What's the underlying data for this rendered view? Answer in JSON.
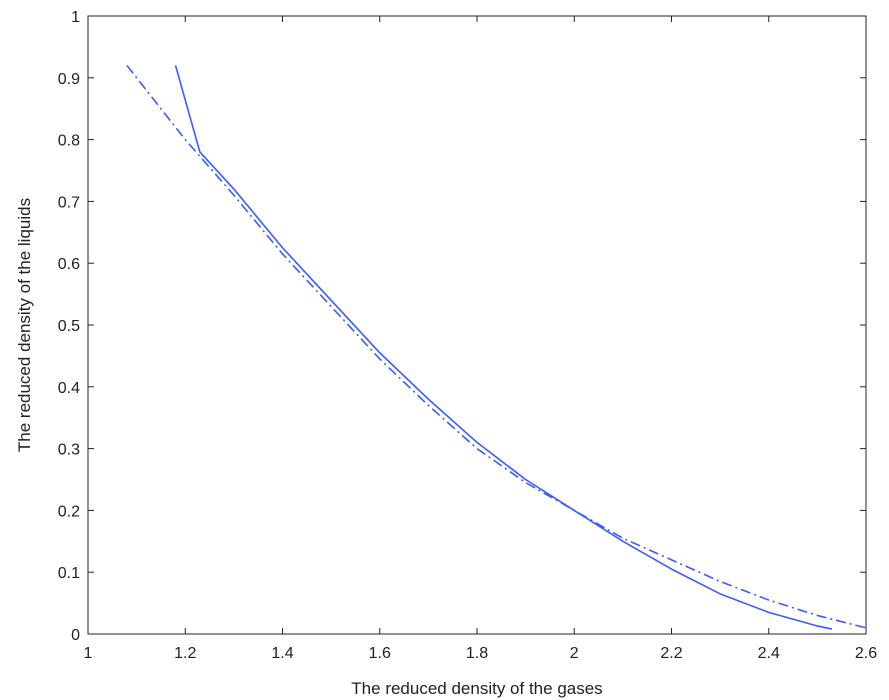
{
  "chart_data": {
    "type": "line",
    "xlabel": "The reduced density of the gases",
    "ylabel": "The reduced density of the liquids",
    "xlim": [
      1,
      2.6
    ],
    "ylim": [
      0,
      1
    ],
    "xticks": [
      "1",
      "1.2",
      "1.4",
      "1.6",
      "1.8",
      "2",
      "2.2",
      "2.4",
      "2.6"
    ],
    "yticks": [
      "0",
      "0.1",
      "0.2",
      "0.3",
      "0.4",
      "0.5",
      "0.6",
      "0.7",
      "0.8",
      "0.9",
      "1"
    ],
    "grid": false,
    "line_color": "#3a5bff",
    "series": [
      {
        "style": "solid",
        "x": [
          1.18,
          1.23,
          1.3,
          1.4,
          1.5,
          1.6,
          1.7,
          1.8,
          1.9,
          2.0,
          2.1,
          2.2,
          2.3,
          2.4,
          2.5,
          2.53
        ],
        "y": [
          0.92,
          0.78,
          0.72,
          0.625,
          0.54,
          0.455,
          0.38,
          0.31,
          0.25,
          0.2,
          0.15,
          0.105,
          0.065,
          0.035,
          0.013,
          0.008
        ]
      },
      {
        "style": "dashdot",
        "x": [
          1.08,
          1.2,
          1.3,
          1.4,
          1.5,
          1.6,
          1.7,
          1.8,
          1.9,
          2.0,
          2.1,
          2.2,
          2.3,
          2.4,
          2.5,
          2.6
        ],
        "y": [
          0.92,
          0.8,
          0.71,
          0.615,
          0.53,
          0.445,
          0.37,
          0.3,
          0.245,
          0.2,
          0.155,
          0.12,
          0.085,
          0.055,
          0.03,
          0.01
        ]
      }
    ]
  }
}
